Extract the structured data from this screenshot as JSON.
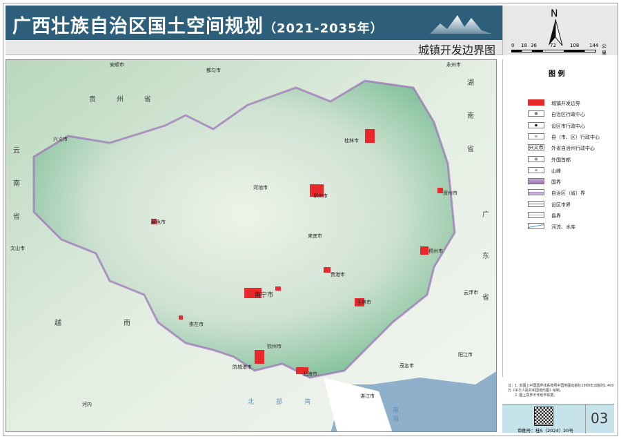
{
  "header": {
    "title": "广西壮族自治区国土空间规划",
    "years": "（2021-2035年）",
    "subtitle": "城镇开发边界图"
  },
  "compass": {
    "north": "N",
    "scale_ticks": [
      "0",
      "18",
      "36",
      "72",
      "108",
      "144"
    ],
    "scale_unit": "公里"
  },
  "legend": {
    "title": "图 例",
    "items": [
      {
        "symbol": "red-fill",
        "label": "城镇开发边界"
      },
      {
        "symbol": "circle-dot",
        "label": "自治区行政中心"
      },
      {
        "symbol": "black-dot",
        "label": "设区市行政中心"
      },
      {
        "symbol": "small-dot",
        "label": "县（市、区）行政中心"
      },
      {
        "symbol": "text",
        "symbol_text": "兴义市",
        "label": "外省自治州行政中心"
      },
      {
        "symbol": "gray-dot",
        "label": "外国首都"
      },
      {
        "symbol": "peak",
        "label": "山峰"
      },
      {
        "symbol": "national-border",
        "label": "国界"
      },
      {
        "symbol": "province-border",
        "label": "自治区（省）界"
      },
      {
        "symbol": "city-border",
        "label": "设区市界"
      },
      {
        "symbol": "county-border",
        "label": "县界"
      },
      {
        "symbol": "river",
        "label": "河流、水库"
      }
    ]
  },
  "note": {
    "line1": "注：1. 本图上中国国界线系按照中国地图出版社1989年出版的1:400万《中华人民共和国地形图》绘制。",
    "line2": "2. 图上境界不作划界依据。"
  },
  "footer": {
    "approval": "审图号：桂S（2024）20号",
    "page": "03"
  },
  "map": {
    "provinces": [
      "贵州省",
      "湖南省",
      "云南省",
      "广东省",
      "越南"
    ],
    "seas": [
      "北部湾",
      "南海"
    ],
    "cities": [
      "安顺市",
      "都匀市",
      "永州市",
      "兴义市",
      "文山市",
      "桂林市",
      "河池市",
      "柳州市",
      "贺州市",
      "百色市",
      "来宾市",
      "梧州市",
      "贵港市",
      "南宁市",
      "玉林市",
      "崇左市",
      "钦州市",
      "防城港市",
      "北海市",
      "茂名市",
      "阳江市",
      "湛江市",
      "云浮市",
      "河内"
    ]
  },
  "colors": {
    "title_bg": "#2d5f7a",
    "boundary_red": "#e8282a",
    "province_border": "#9b6fb8",
    "sea": "#8fb0cb",
    "footer_bg": "#c6e3ec"
  }
}
